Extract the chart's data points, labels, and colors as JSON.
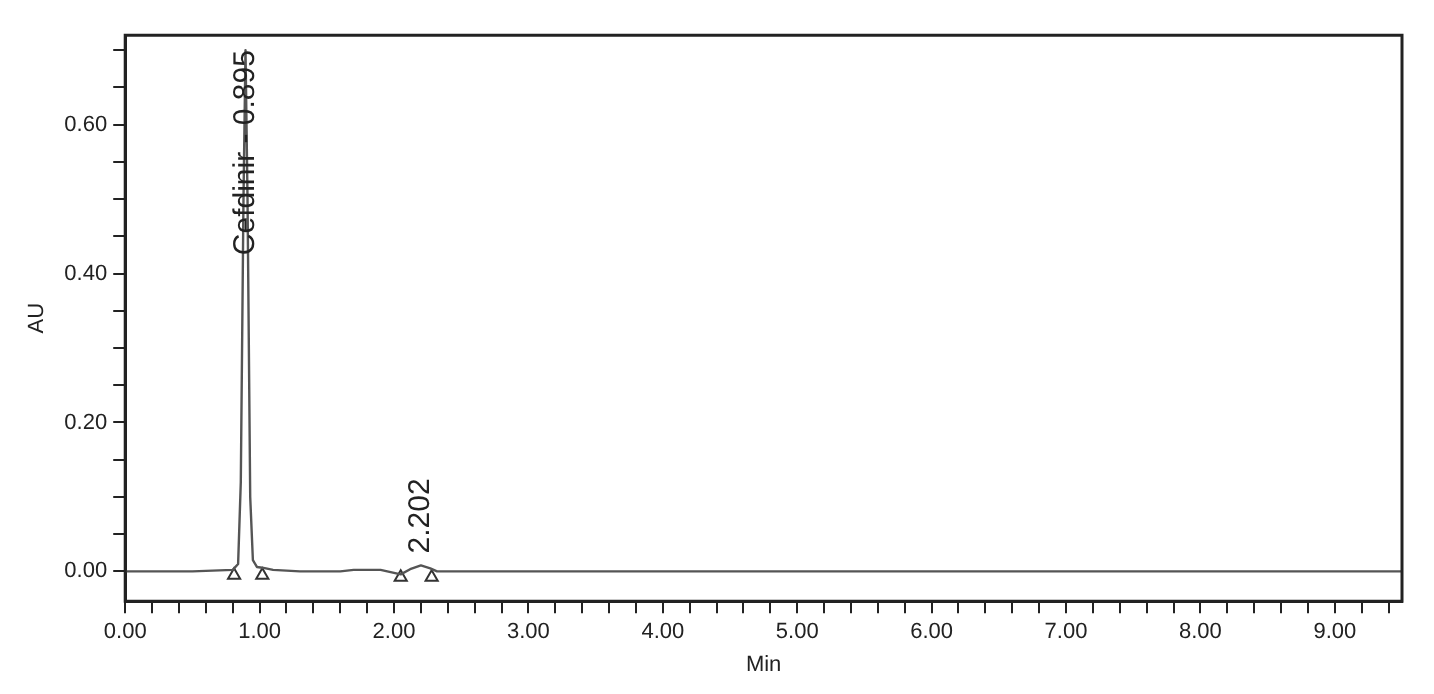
{
  "chart_data": {
    "type": "line",
    "xlabel": "Min",
    "ylabel": "AU",
    "xlim": [
      0,
      9.5
    ],
    "ylim": [
      -0.04,
      0.72
    ],
    "xticks": [
      {
        "value": 0,
        "label": "0.00"
      },
      {
        "value": 0.2,
        "label": null
      },
      {
        "value": 0.4,
        "label": null
      },
      {
        "value": 0.6,
        "label": null
      },
      {
        "value": 0.8,
        "label": null
      },
      {
        "value": 1,
        "label": "1.00"
      },
      {
        "value": 1.2,
        "label": null
      },
      {
        "value": 1.4,
        "label": null
      },
      {
        "value": 1.6,
        "label": null
      },
      {
        "value": 1.8,
        "label": null
      },
      {
        "value": 2,
        "label": "2.00"
      },
      {
        "value": 2.2,
        "label": null
      },
      {
        "value": 2.4,
        "label": null
      },
      {
        "value": 2.6,
        "label": null
      },
      {
        "value": 2.8,
        "label": null
      },
      {
        "value": 3,
        "label": "3.00"
      },
      {
        "value": 3.2,
        "label": null
      },
      {
        "value": 3.4,
        "label": null
      },
      {
        "value": 3.6,
        "label": null
      },
      {
        "value": 3.8,
        "label": null
      },
      {
        "value": 4,
        "label": "4.00"
      },
      {
        "value": 4.2,
        "label": null
      },
      {
        "value": 4.4,
        "label": null
      },
      {
        "value": 4.6,
        "label": null
      },
      {
        "value": 4.8,
        "label": null
      },
      {
        "value": 5,
        "label": "5.00"
      },
      {
        "value": 5.2,
        "label": null
      },
      {
        "value": 5.4,
        "label": null
      },
      {
        "value": 5.6,
        "label": null
      },
      {
        "value": 5.8,
        "label": null
      },
      {
        "value": 6,
        "label": "6.00"
      },
      {
        "value": 6.2,
        "label": null
      },
      {
        "value": 6.4,
        "label": null
      },
      {
        "value": 6.6,
        "label": null
      },
      {
        "value": 6.8,
        "label": null
      },
      {
        "value": 7,
        "label": "7.00"
      },
      {
        "value": 7.2,
        "label": null
      },
      {
        "value": 7.4,
        "label": null
      },
      {
        "value": 7.6,
        "label": null
      },
      {
        "value": 7.8,
        "label": null
      },
      {
        "value": 8,
        "label": "8.00"
      },
      {
        "value": 8.2,
        "label": null
      },
      {
        "value": 8.4,
        "label": null
      },
      {
        "value": 8.6,
        "label": null
      },
      {
        "value": 8.8,
        "label": null
      },
      {
        "value": 9,
        "label": "9.00"
      },
      {
        "value": 9.2,
        "label": null
      },
      {
        "value": 9.4,
        "label": null
      }
    ],
    "yticks": [
      {
        "value": 0,
        "label": "0.00"
      },
      {
        "value": 0.05,
        "label": null
      },
      {
        "value": 0.1,
        "label": null
      },
      {
        "value": 0.15,
        "label": null
      },
      {
        "value": 0.2,
        "label": "0.20"
      },
      {
        "value": 0.25,
        "label": null
      },
      {
        "value": 0.3,
        "label": null
      },
      {
        "value": 0.35,
        "label": null
      },
      {
        "value": 0.4,
        "label": "0.40"
      },
      {
        "value": 0.45,
        "label": null
      },
      {
        "value": 0.5,
        "label": null
      },
      {
        "value": 0.55,
        "label": null
      },
      {
        "value": 0.6,
        "label": "0.60"
      },
      {
        "value": 0.65,
        "label": null
      },
      {
        "value": 0.7,
        "label": null
      }
    ],
    "grid": false,
    "legend": false,
    "series": [
      {
        "color": "#555555",
        "marker": "none",
        "x": [
          0,
          0.5,
          0.8,
          0.84,
          0.86,
          0.88,
          0.895,
          0.91,
          0.93,
          0.95,
          0.98,
          1.02,
          1.1,
          1.3,
          1.6,
          1.7,
          1.9,
          2.0,
          2.05,
          2.12,
          2.2,
          2.27,
          2.32,
          2.5,
          3,
          4,
          5,
          6,
          7,
          8,
          9,
          9.5
        ],
        "values": [
          0,
          0,
          0.002,
          0.01,
          0.12,
          0.5,
          0.7,
          0.5,
          0.1,
          0.015,
          0.006,
          0.005,
          0.002,
          0,
          0,
          0.002,
          0.002,
          -0.002,
          -0.004,
          0.003,
          0.008,
          0.004,
          0,
          0,
          0,
          0,
          0,
          0,
          0,
          0,
          0,
          0
        ]
      },
      {
        "type": "scatter",
        "color": "#333333",
        "marker": "triangle",
        "x": [
          0.81,
          1.02,
          2.05,
          2.28
        ],
        "values": [
          -0.005,
          -0.005,
          -0.008,
          -0.008
        ]
      }
    ],
    "annotations": [
      {
        "text": "Cefdinir - 0.895",
        "x": 0.895,
        "y": 0.7
      },
      {
        "text": "2.202",
        "x": 2.202,
        "y": 0.008
      }
    ]
  }
}
